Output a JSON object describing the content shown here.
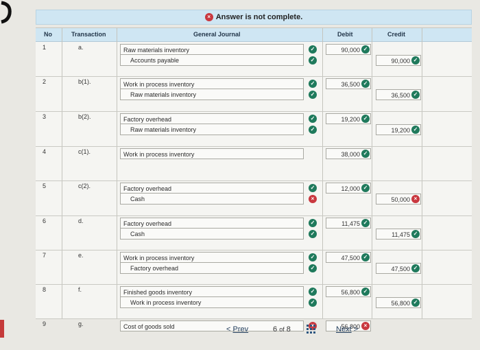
{
  "banner": {
    "text": "Answer is not complete."
  },
  "headers": {
    "no": "No",
    "transaction": "Transaction",
    "journal": "General Journal",
    "debit": "Debit",
    "credit": "Credit"
  },
  "rows": [
    {
      "no": "1",
      "txn": "a.",
      "line1": "Raw materials inventory",
      "line2": "Accounts payable",
      "debit": "90,000",
      "credit": "90,000",
      "check1": "ok",
      "check2": "ok",
      "debit_status": "ok",
      "credit_status": "ok"
    },
    {
      "no": "2",
      "txn": "b(1).",
      "line1": "Work in process inventory",
      "line2": "Raw materials inventory",
      "debit": "36,500",
      "credit": "36,500",
      "check1": "ok",
      "check2": "ok",
      "debit_status": "ok",
      "credit_status": "ok"
    },
    {
      "no": "3",
      "txn": "b(2).",
      "line1": "Factory overhead",
      "line2": "Raw materials inventory",
      "debit": "19,200",
      "credit": "19,200",
      "check1": "ok",
      "check2": "ok",
      "debit_status": "ok",
      "credit_status": "ok"
    },
    {
      "no": "4",
      "txn": "c(1).",
      "line1": "Work in process inventory",
      "line2": "",
      "debit": "38,000",
      "credit": "",
      "check1": "",
      "check2": "",
      "debit_status": "ok",
      "credit_status": ""
    },
    {
      "no": "5",
      "txn": "c(2).",
      "line1": "Factory overhead",
      "line2": "Cash",
      "debit": "12,000",
      "credit": "50,000",
      "check1": "ok",
      "check2": "bad",
      "debit_status": "ok",
      "credit_status": "bad"
    },
    {
      "no": "6",
      "txn": "d.",
      "line1": "Factory overhead",
      "line2": "Cash",
      "debit": "11,475",
      "credit": "11,475",
      "check1": "ok",
      "check2": "ok",
      "debit_status": "ok",
      "credit_status": "ok"
    },
    {
      "no": "7",
      "txn": "e.",
      "line1": "Work in process inventory",
      "line2": "Factory overhead",
      "debit": "47,500",
      "credit": "47,500",
      "check1": "ok",
      "check2": "ok",
      "debit_status": "ok",
      "credit_status": "ok"
    },
    {
      "no": "8",
      "txn": "f.",
      "line1": "Finished goods inventory",
      "line2": "Work in process inventory",
      "debit": "56,800",
      "credit": "56,800",
      "check1": "ok",
      "check2": "ok",
      "debit_status": "ok",
      "credit_status": "ok"
    },
    {
      "no": "9",
      "txn": "g.",
      "line1": "Cost of goods sold",
      "line2": "",
      "debit": "56,800",
      "credit": "",
      "check1": "bad",
      "check2": "",
      "debit_status": "bad",
      "credit_status": ""
    }
  ],
  "footer": {
    "prev": "Prev",
    "page_current": "6",
    "page_of": "of",
    "page_total": "8",
    "next": "Next"
  },
  "colors": {
    "ok": "#1f7a5c",
    "bad": "#c9383f",
    "header_bg": "#cfe6f3"
  }
}
